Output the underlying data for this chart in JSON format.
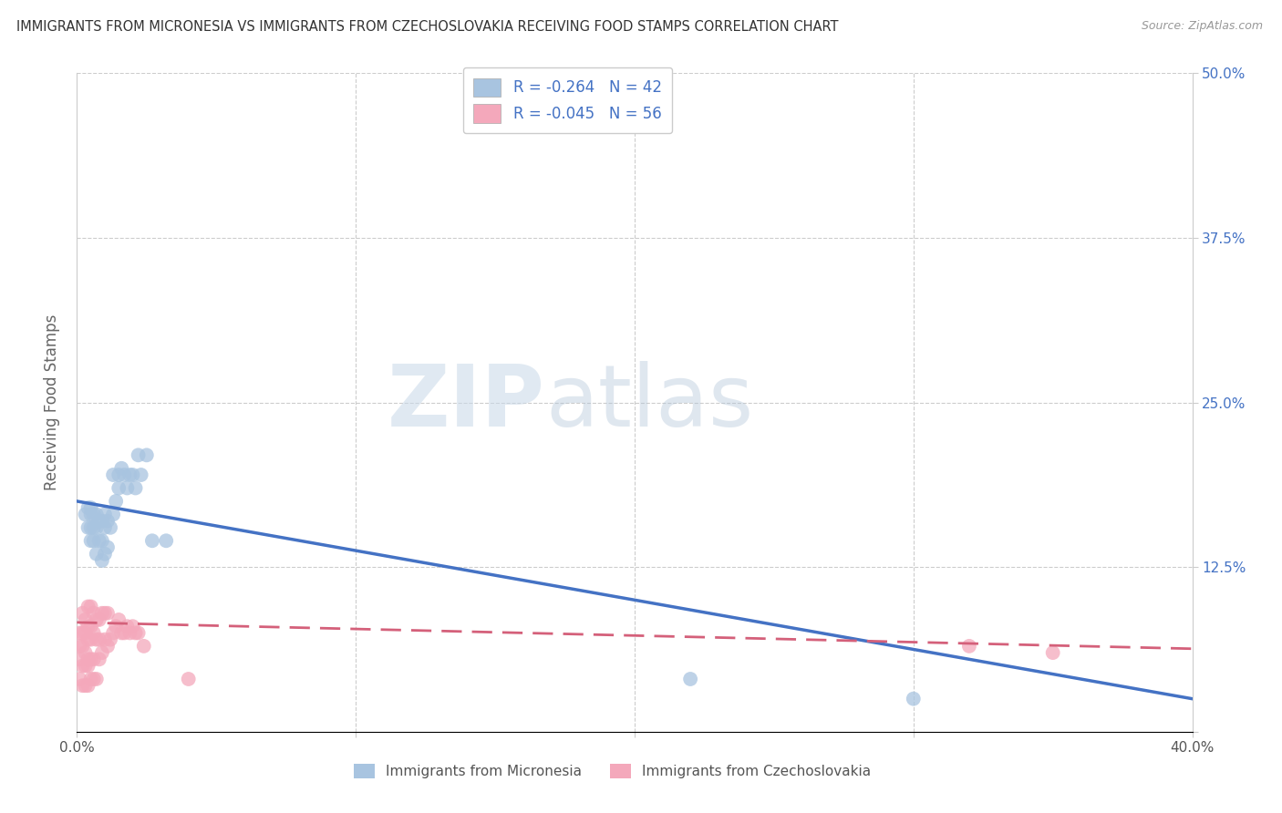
{
  "title": "IMMIGRANTS FROM MICRONESIA VS IMMIGRANTS FROM CZECHOSLOVAKIA RECEIVING FOOD STAMPS CORRELATION CHART",
  "source": "Source: ZipAtlas.com",
  "ylabel": "Receiving Food Stamps",
  "xlim": [
    0.0,
    0.4
  ],
  "ylim": [
    0.0,
    0.5
  ],
  "legend_micronesia": "Immigrants from Micronesia",
  "legend_czechoslovakia": "Immigrants from Czechoslovakia",
  "R_micronesia": -0.264,
  "N_micronesia": 42,
  "R_czechoslovakia": -0.045,
  "N_czechoslovakia": 56,
  "color_micronesia": "#a8c4e0",
  "color_czechoslovakia": "#f4a8bb",
  "color_micronesia_line": "#4472c4",
  "color_czechoslovakia_line": "#d4607a",
  "watermark_zip": "ZIP",
  "watermark_atlas": "atlas",
  "micronesia_x": [
    0.003,
    0.004,
    0.004,
    0.005,
    0.005,
    0.005,
    0.005,
    0.006,
    0.006,
    0.006,
    0.007,
    0.007,
    0.007,
    0.008,
    0.008,
    0.009,
    0.009,
    0.009,
    0.01,
    0.01,
    0.01,
    0.011,
    0.011,
    0.012,
    0.013,
    0.013,
    0.014,
    0.015,
    0.015,
    0.016,
    0.017,
    0.018,
    0.019,
    0.02,
    0.021,
    0.022,
    0.023,
    0.025,
    0.027,
    0.032,
    0.22,
    0.3
  ],
  "micronesia_y": [
    0.165,
    0.155,
    0.17,
    0.145,
    0.155,
    0.165,
    0.17,
    0.145,
    0.155,
    0.165,
    0.135,
    0.155,
    0.165,
    0.145,
    0.16,
    0.13,
    0.145,
    0.16,
    0.135,
    0.155,
    0.165,
    0.14,
    0.16,
    0.155,
    0.165,
    0.195,
    0.175,
    0.185,
    0.195,
    0.2,
    0.195,
    0.185,
    0.195,
    0.195,
    0.185,
    0.21,
    0.195,
    0.21,
    0.145,
    0.145,
    0.04,
    0.025
  ],
  "czechoslovakia_x": [
    0.001,
    0.001,
    0.001,
    0.001,
    0.002,
    0.002,
    0.002,
    0.002,
    0.002,
    0.003,
    0.003,
    0.003,
    0.003,
    0.003,
    0.004,
    0.004,
    0.004,
    0.004,
    0.004,
    0.004,
    0.005,
    0.005,
    0.005,
    0.005,
    0.005,
    0.006,
    0.006,
    0.006,
    0.006,
    0.007,
    0.007,
    0.007,
    0.008,
    0.008,
    0.008,
    0.009,
    0.009,
    0.01,
    0.01,
    0.011,
    0.011,
    0.012,
    0.013,
    0.014,
    0.015,
    0.016,
    0.017,
    0.018,
    0.019,
    0.02,
    0.021,
    0.022,
    0.024,
    0.04,
    0.32,
    0.35
  ],
  "czechoslovakia_y": [
    0.04,
    0.055,
    0.065,
    0.075,
    0.035,
    0.05,
    0.065,
    0.075,
    0.09,
    0.035,
    0.05,
    0.06,
    0.075,
    0.085,
    0.035,
    0.05,
    0.055,
    0.07,
    0.08,
    0.095,
    0.04,
    0.055,
    0.07,
    0.08,
    0.095,
    0.04,
    0.055,
    0.075,
    0.09,
    0.04,
    0.07,
    0.085,
    0.055,
    0.07,
    0.085,
    0.06,
    0.09,
    0.07,
    0.09,
    0.065,
    0.09,
    0.07,
    0.075,
    0.08,
    0.085,
    0.075,
    0.075,
    0.08,
    0.075,
    0.08,
    0.075,
    0.075,
    0.065,
    0.04,
    0.065,
    0.06
  ],
  "blue_line_x": [
    0.0,
    0.4
  ],
  "blue_line_y": [
    0.175,
    0.025
  ],
  "pink_line_x": [
    0.0,
    0.4
  ],
  "pink_line_y": [
    0.083,
    0.063
  ]
}
